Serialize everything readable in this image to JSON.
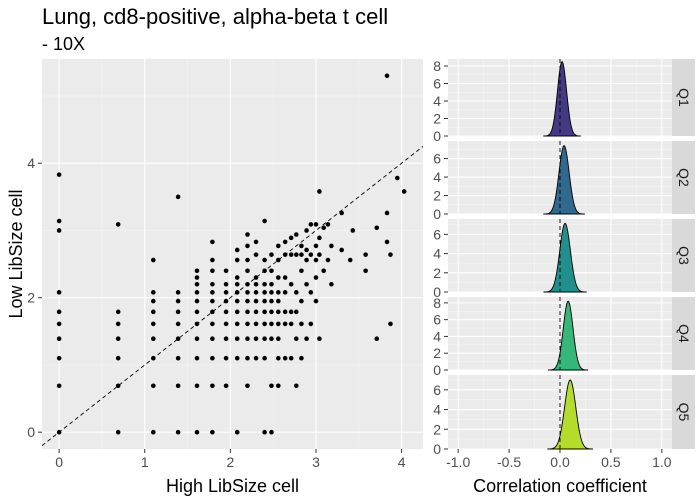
{
  "title": "Lung, cd8-positive, alpha-beta t cell",
  "subtitle": "- 10X",
  "chart_data": [
    {
      "type": "scatter",
      "xlabel": "High LibSize cell",
      "ylabel": "Low LibSize cell",
      "xlim": [
        -0.2,
        4.25
      ],
      "ylim": [
        -0.25,
        5.55
      ],
      "xticks": [
        "0",
        "1",
        "2",
        "3",
        "4"
      ],
      "yticks": [
        "0",
        "2",
        "4"
      ],
      "reference_line": "identity (dashed)",
      "grid": true,
      "points": [
        [
          0,
          0
        ],
        [
          0,
          0.69
        ],
        [
          0,
          1.1
        ],
        [
          0,
          1.39
        ],
        [
          0,
          1.61
        ],
        [
          0,
          1.79
        ],
        [
          0,
          2.08
        ],
        [
          0,
          3.0
        ],
        [
          0,
          3.14
        ],
        [
          0,
          3.83
        ],
        [
          0.69,
          0
        ],
        [
          0.69,
          0.69
        ],
        [
          0.69,
          1.1
        ],
        [
          0.69,
          1.39
        ],
        [
          0.69,
          1.61
        ],
        [
          0.69,
          1.79
        ],
        [
          0.69,
          3.09
        ],
        [
          1.1,
          0
        ],
        [
          1.1,
          0.69
        ],
        [
          1.1,
          1.1
        ],
        [
          1.1,
          1.39
        ],
        [
          1.1,
          1.61
        ],
        [
          1.1,
          1.79
        ],
        [
          1.1,
          1.95
        ],
        [
          1.1,
          2.08
        ],
        [
          1.1,
          2.56
        ],
        [
          1.39,
          0
        ],
        [
          1.39,
          0.69
        ],
        [
          1.39,
          1.1
        ],
        [
          1.39,
          1.39
        ],
        [
          1.39,
          1.61
        ],
        [
          1.39,
          1.79
        ],
        [
          1.39,
          1.95
        ],
        [
          1.39,
          2.08
        ],
        [
          1.39,
          3.5
        ],
        [
          1.61,
          0
        ],
        [
          1.61,
          0.69
        ],
        [
          1.61,
          1.1
        ],
        [
          1.61,
          1.39
        ],
        [
          1.61,
          1.61
        ],
        [
          1.61,
          1.79
        ],
        [
          1.61,
          1.95
        ],
        [
          1.61,
          2.08
        ],
        [
          1.61,
          2.2
        ],
        [
          1.61,
          2.3
        ],
        [
          1.61,
          2.4
        ],
        [
          1.79,
          0
        ],
        [
          1.79,
          0.69
        ],
        [
          1.79,
          1.1
        ],
        [
          1.79,
          1.39
        ],
        [
          1.79,
          1.61
        ],
        [
          1.79,
          1.79
        ],
        [
          1.79,
          1.95
        ],
        [
          1.79,
          2.08
        ],
        [
          1.79,
          2.2
        ],
        [
          1.79,
          2.4
        ],
        [
          1.79,
          2.56
        ],
        [
          1.79,
          2.83
        ],
        [
          1.95,
          0.69
        ],
        [
          1.95,
          1.1
        ],
        [
          1.95,
          1.39
        ],
        [
          1.95,
          1.61
        ],
        [
          1.95,
          1.79
        ],
        [
          1.95,
          1.95
        ],
        [
          1.95,
          2.08
        ],
        [
          1.95,
          2.2
        ],
        [
          1.95,
          2.4
        ],
        [
          2.08,
          0
        ],
        [
          2.08,
          1.1
        ],
        [
          2.08,
          1.39
        ],
        [
          2.08,
          1.61
        ],
        [
          2.08,
          1.79
        ],
        [
          2.08,
          1.95
        ],
        [
          2.08,
          2.08
        ],
        [
          2.08,
          2.2
        ],
        [
          2.08,
          2.3
        ],
        [
          2.08,
          2.56
        ],
        [
          2.08,
          2.71
        ],
        [
          2.2,
          0.69
        ],
        [
          2.2,
          1.1
        ],
        [
          2.2,
          1.39
        ],
        [
          2.2,
          1.61
        ],
        [
          2.2,
          1.79
        ],
        [
          2.2,
          1.95
        ],
        [
          2.2,
          2.08
        ],
        [
          2.2,
          2.2
        ],
        [
          2.2,
          2.4
        ],
        [
          2.2,
          2.56
        ],
        [
          2.2,
          2.77
        ],
        [
          2.2,
          2.94
        ],
        [
          2.3,
          1.1
        ],
        [
          2.3,
          1.39
        ],
        [
          2.3,
          1.61
        ],
        [
          2.3,
          1.79
        ],
        [
          2.3,
          1.95
        ],
        [
          2.3,
          2.08
        ],
        [
          2.3,
          2.2
        ],
        [
          2.3,
          2.3
        ],
        [
          2.3,
          2.64
        ],
        [
          2.3,
          2.83
        ],
        [
          2.4,
          0
        ],
        [
          2.4,
          1.1
        ],
        [
          2.4,
          1.39
        ],
        [
          2.4,
          1.61
        ],
        [
          2.4,
          1.79
        ],
        [
          2.4,
          1.95
        ],
        [
          2.4,
          2.08
        ],
        [
          2.4,
          2.2
        ],
        [
          2.4,
          2.4
        ],
        [
          2.4,
          2.56
        ],
        [
          2.4,
          3.14
        ],
        [
          2.48,
          0
        ],
        [
          2.48,
          0.69
        ],
        [
          2.48,
          1.39
        ],
        [
          2.48,
          1.61
        ],
        [
          2.48,
          1.79
        ],
        [
          2.48,
          1.95
        ],
        [
          2.48,
          2.08
        ],
        [
          2.48,
          2.2
        ],
        [
          2.48,
          2.4
        ],
        [
          2.48,
          2.64
        ],
        [
          2.56,
          0.69
        ],
        [
          2.56,
          1.1
        ],
        [
          2.56,
          1.39
        ],
        [
          2.56,
          1.61
        ],
        [
          2.56,
          1.79
        ],
        [
          2.56,
          1.95
        ],
        [
          2.56,
          2.08
        ],
        [
          2.56,
          2.3
        ],
        [
          2.56,
          2.56
        ],
        [
          2.56,
          2.77
        ],
        [
          2.64,
          1.1
        ],
        [
          2.64,
          1.61
        ],
        [
          2.64,
          1.79
        ],
        [
          2.64,
          2.08
        ],
        [
          2.64,
          2.3
        ],
        [
          2.64,
          2.64
        ],
        [
          2.64,
          2.83
        ],
        [
          2.71,
          1.1
        ],
        [
          2.71,
          1.61
        ],
        [
          2.71,
          1.79
        ],
        [
          2.71,
          2.2
        ],
        [
          2.71,
          2.64
        ],
        [
          2.71,
          2.89
        ],
        [
          2.77,
          0.69
        ],
        [
          2.77,
          1.39
        ],
        [
          2.77,
          1.79
        ],
        [
          2.77,
          2.08
        ],
        [
          2.77,
          2.64
        ],
        [
          2.77,
          2.94
        ],
        [
          2.83,
          1.1
        ],
        [
          2.83,
          1.61
        ],
        [
          2.83,
          1.95
        ],
        [
          2.83,
          2.4
        ],
        [
          2.83,
          2.64
        ],
        [
          2.83,
          2.77
        ],
        [
          2.89,
          1.39
        ],
        [
          2.89,
          2.2
        ],
        [
          2.89,
          2.56
        ],
        [
          2.89,
          2.71
        ],
        [
          2.89,
          3.0
        ],
        [
          2.94,
          1.61
        ],
        [
          2.94,
          2.08
        ],
        [
          2.94,
          2.64
        ],
        [
          2.94,
          3.09
        ],
        [
          3.0,
          1.95
        ],
        [
          3.0,
          2.3
        ],
        [
          3.0,
          2.56
        ],
        [
          3.0,
          2.77
        ],
        [
          3.0,
          3.09
        ],
        [
          3.04,
          1.39
        ],
        [
          3.04,
          2.64
        ],
        [
          3.04,
          2.89
        ],
        [
          3.04,
          3.58
        ],
        [
          3.09,
          2.4
        ],
        [
          3.09,
          3.04
        ],
        [
          3.14,
          2.56
        ],
        [
          3.14,
          3.09
        ],
        [
          3.18,
          2.2
        ],
        [
          3.18,
          2.77
        ],
        [
          3.3,
          2.71
        ],
        [
          3.3,
          3.26
        ],
        [
          3.4,
          2.56
        ],
        [
          3.43,
          3.0
        ],
        [
          3.58,
          2.4
        ],
        [
          3.58,
          2.64
        ],
        [
          3.71,
          1.39
        ],
        [
          3.71,
          3.04
        ],
        [
          3.83,
          2.83
        ],
        [
          3.83,
          3.26
        ],
        [
          3.83,
          5.3
        ],
        [
          3.87,
          1.61
        ],
        [
          3.87,
          2.64
        ],
        [
          3.95,
          3.78
        ],
        [
          4.03,
          3.58
        ]
      ]
    },
    {
      "type": "area",
      "xlabel": "Correlation coefficient",
      "xlim": [
        -1.1,
        1.1
      ],
      "xticks": [
        "-1.0",
        "-0.5",
        "0.0",
        "0.5",
        "1.0"
      ],
      "reference_line": "x = 0 (dashed)",
      "panels": [
        {
          "name": "Q1",
          "color": "#443A83",
          "ymax": 8.8,
          "yticks": [
            "0",
            "2",
            "4",
            "6",
            "8"
          ],
          "mean": 0.02,
          "sd": 0.045,
          "peak": 8.5
        },
        {
          "name": "Q2",
          "color": "#31688E",
          "ymax": 7.9,
          "yticks": [
            "0",
            "2",
            "4",
            "6"
          ],
          "mean": 0.04,
          "sd": 0.05,
          "peak": 7.4
        },
        {
          "name": "Q3",
          "color": "#21908C",
          "ymax": 7.6,
          "yticks": [
            "0",
            "2",
            "4",
            "6"
          ],
          "mean": 0.05,
          "sd": 0.052,
          "peak": 7.15
        },
        {
          "name": "Q4",
          "color": "#35B779",
          "ymax": 8.7,
          "yticks": [
            "0",
            "2",
            "4",
            "6",
            "8"
          ],
          "mean": 0.08,
          "sd": 0.048,
          "peak": 8.2
        },
        {
          "name": "Q5",
          "color": "#B3DC2B",
          "ymax": 7.5,
          "yticks": [
            "0",
            "2",
            "4",
            "6"
          ],
          "mean": 0.1,
          "sd": 0.055,
          "peak": 7.0
        }
      ]
    }
  ]
}
